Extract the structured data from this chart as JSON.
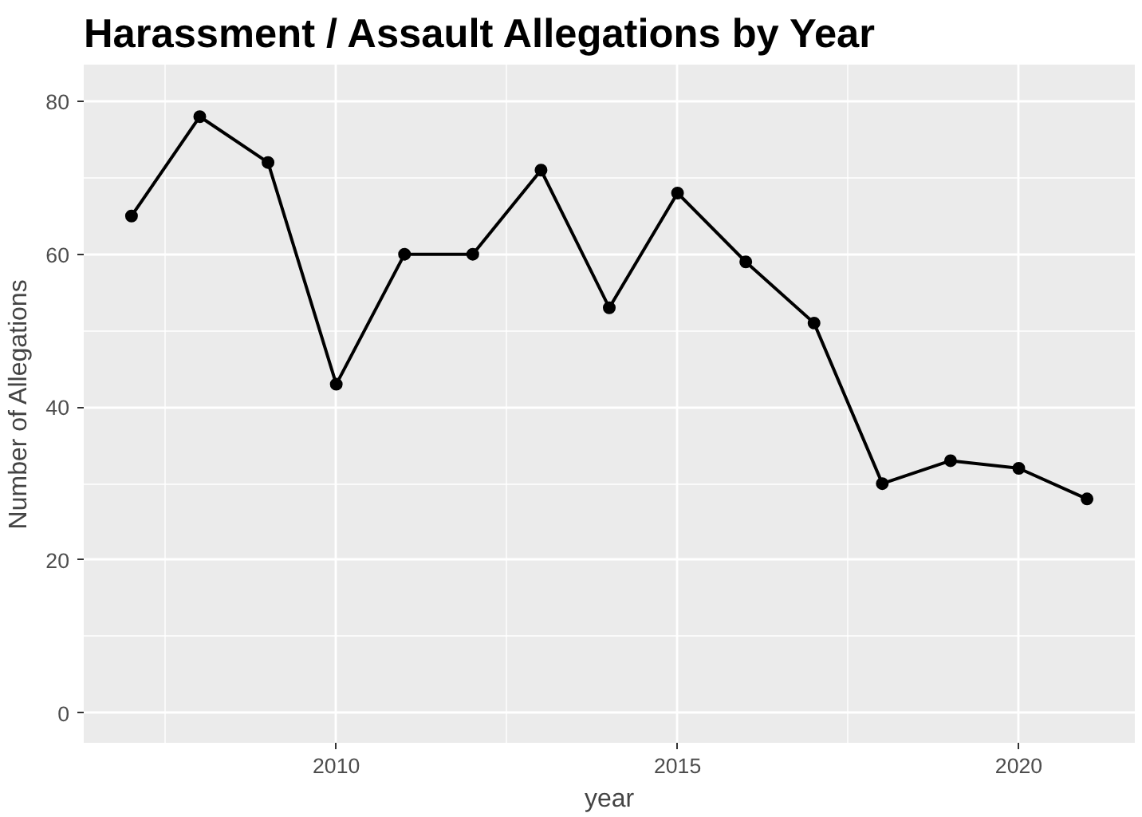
{
  "chart_data": {
    "type": "line",
    "title": "Harassment / Assault Allegations by Year",
    "xlabel": "year",
    "ylabel": "Number of Allegations",
    "x": [
      2007,
      2008,
      2009,
      2010,
      2011,
      2012,
      2013,
      2014,
      2015,
      2016,
      2017,
      2018,
      2019,
      2020,
      2021
    ],
    "series": [
      {
        "color": "#000000",
        "values": [
          65,
          78,
          72,
          43,
          60,
          60,
          71,
          53,
          68,
          59,
          51,
          30,
          33,
          32,
          28
        ]
      }
    ],
    "xlim": [
      2006.3,
      2021.7
    ],
    "ylim": [
      -3.9,
      84.8
    ],
    "xticks": [
      2010,
      2015,
      2020
    ],
    "yticks": [
      0,
      20,
      40,
      60,
      80
    ],
    "grid": true,
    "marker": "circle",
    "line_style": "solid"
  }
}
